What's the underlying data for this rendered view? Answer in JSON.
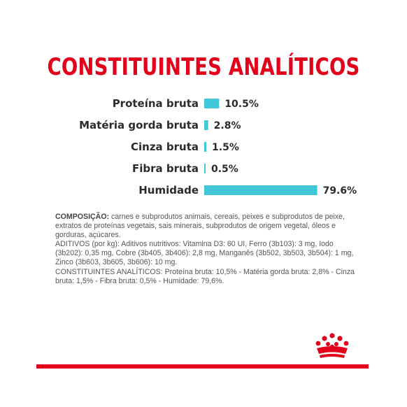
{
  "colors": {
    "title": "#e2001a",
    "bar": "#40c8d8",
    "rule": "#e2001a"
  },
  "chart_data": {
    "type": "bar",
    "orientation": "horizontal",
    "title": "CONSTITUINTES ANALÍTICOS",
    "unit": "%",
    "categories": [
      "Proteína bruta",
      "Matéria gorda bruta",
      "Cinza bruta",
      "Fibra bruta",
      "Humidade"
    ],
    "values": [
      10.5,
      2.8,
      1.5,
      0.5,
      79.6
    ],
    "value_labels": [
      "10.5%",
      "2.8%",
      "1.5%",
      "0.5%",
      "79.6%"
    ],
    "grid": false,
    "legend": "none"
  },
  "composition": {
    "heading": "COMPOSIÇÃO:",
    "text": " carnes e subprodutos animais, cereais, peixes e subprodutos de peixe, extratos de proteínas vegetais, sais minerais, subprodutos de origem vegetal, óleos e gorduras, açúcares.",
    "additives": "ADITIVOS (por kg): Aditivos nutritivos: Vitamina D3: 60 UI, Ferro (3b103): 3 mg, Iodo (3b202): 0,35 mg, Cobre (3b405, 3b406): 2,8 mg, Manganês (3b502, 3b503, 3b504): 1 mg, Zinco (3b603, 3b605, 3b606): 10 mg.",
    "analytical": "CONSTITUINTES ANALÍTICOS: Proteína bruta: 10,5% - Matéria gorda bruta: 2,8% - Cinza bruta: 1,5% - Fibra bruta: 0,5% - Humidade: 79,6%."
  },
  "logo": {
    "icon": "crown-icon"
  }
}
